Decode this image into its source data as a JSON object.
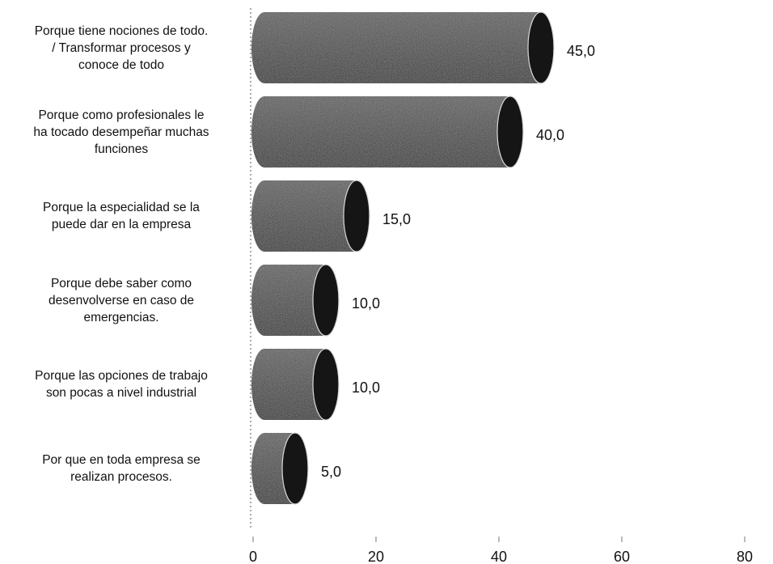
{
  "chart_data": {
    "type": "bar",
    "orientation": "horizontal",
    "categories": [
      "Porque tiene nociones de todo.\n/ Transformar procesos y\nconoce de todo",
      "Porque como profesionales le\nha tocado  desempeñar muchas\nfunciones",
      "Porque la especialidad se la\npuede dar en la empresa",
      "Porque debe saber como\ndesenvolverse en caso de\nemergencias.",
      "Porque las opciones de trabajo\nson pocas  a nivel industrial",
      "Por que en toda empresa se\nrealizan procesos."
    ],
    "values": [
      45.0,
      40.0,
      15.0,
      10.0,
      10.0,
      5.0
    ],
    "value_labels": [
      "45,0",
      "40,0",
      "15,0",
      "10,0",
      "10,0",
      "5,0"
    ],
    "xlim": [
      0,
      80
    ],
    "xticks": [
      "0",
      "20",
      "40",
      "60",
      "80"
    ],
    "bar_shape": "cylinder",
    "bar_color": "#3a3a3a",
    "grid": false,
    "legend": "none"
  }
}
